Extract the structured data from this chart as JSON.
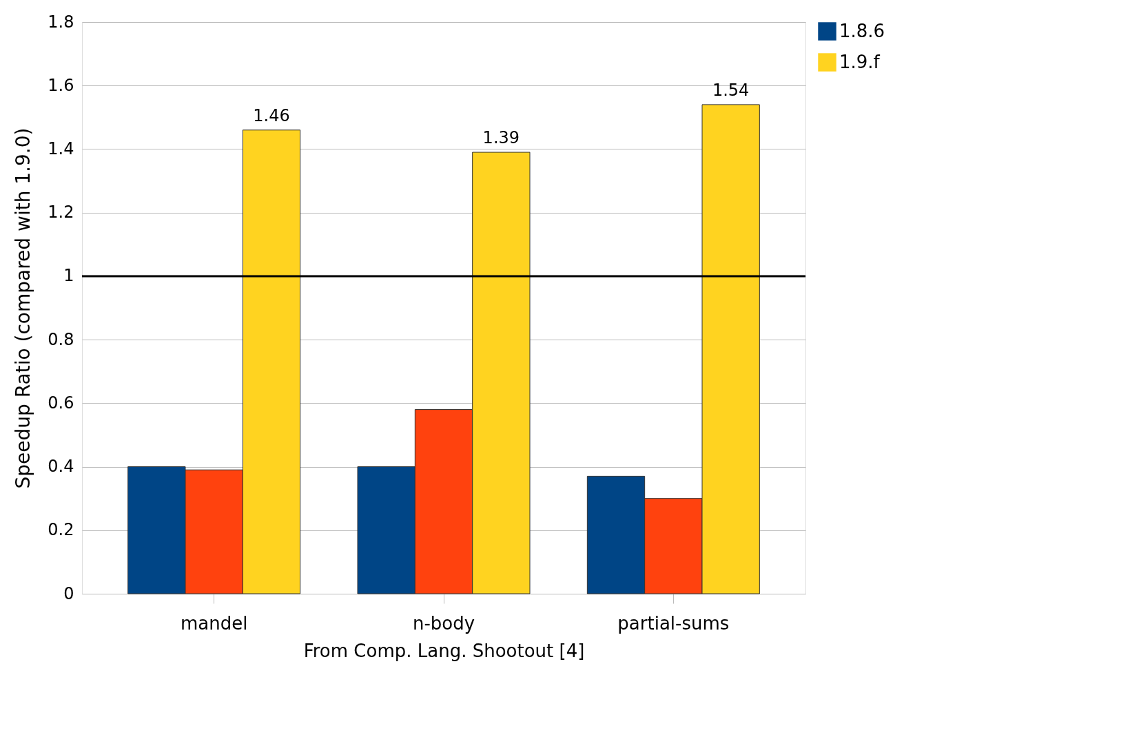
{
  "chart_data": {
    "type": "bar",
    "ylabel": "Speedup Ratio (compared with 1.9.0)",
    "xlabel": "From Comp. Lang. Shootout [4]",
    "categories": [
      "mandel",
      "n-body",
      "partial-sums"
    ],
    "series": [
      {
        "name": "1.8.6",
        "color": "#004586",
        "values": [
          0.4,
          0.4,
          0.37
        ]
      },
      {
        "color": "#ff420e",
        "values": [
          0.39,
          0.58,
          0.3
        ]
      },
      {
        "name": "1.9.f",
        "color": "#ffd320",
        "values": [
          1.46,
          1.39,
          1.54
        ],
        "value_labels": [
          "1.46",
          "1.39",
          "1.54"
        ]
      }
    ],
    "ylim": [
      0,
      1.8
    ],
    "yticks": [
      0,
      0.2,
      0.4,
      0.6,
      0.8,
      1,
      1.2,
      1.4,
      1.6,
      1.8
    ],
    "ref_lines": [
      {
        "axis": "y",
        "value": 1,
        "color": "#000000",
        "line_style": "solid"
      }
    ],
    "grid": "y",
    "legend": "right"
  }
}
